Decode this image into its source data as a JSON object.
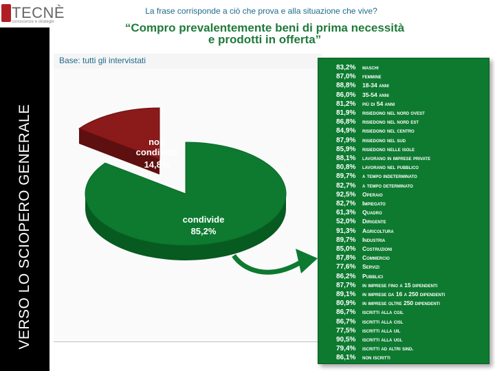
{
  "header": {
    "question": "La frase corrisponde a ciò che prova e alla situazione che vive?",
    "title_line1": "“Compro prevalentemente beni di prima necessità",
    "title_line2": "e prodotti in offerta”",
    "base": "Base: tutti gli intervistati"
  },
  "logo": {
    "name": "TECNÈ",
    "tagline": "conoscenze e strategie"
  },
  "sidebar": {
    "label": "VERSO LO SCIOPERO GENERALE"
  },
  "colors": {
    "green": "#0d7a30",
    "dark_green": "#075a20",
    "red": "#8b1a1a",
    "dark_red": "#5e0f0f"
  },
  "chart_data": {
    "type": "pie",
    "slices": [
      {
        "label": "condivide",
        "value": 85.2,
        "value_label": "85,2%"
      },
      {
        "label": "non condivide",
        "value": 14.8,
        "value_label": "14,8%"
      }
    ]
  },
  "breakdown": [
    {
      "value": "83,2%",
      "label": "maschi"
    },
    {
      "value": "87,0%",
      "label": "femmine"
    },
    {
      "value": "88,8%",
      "label": "18-34 anni"
    },
    {
      "value": "86,0%",
      "label": "35-54 anni"
    },
    {
      "value": "81,2%",
      "label": "più di 54 anni"
    },
    {
      "value": "81,9%",
      "label": "risiedono nel nord ovest"
    },
    {
      "value": "86,8%",
      "label": "risiedono nel nord est"
    },
    {
      "value": "84,9%",
      "label": "risiedono nel centro"
    },
    {
      "value": "87,9%",
      "label": "risiedono nel sud"
    },
    {
      "value": "85,9%",
      "label": "risiedono nelle isole"
    },
    {
      "value": "88,1%",
      "label": "lavorano in imprese private"
    },
    {
      "value": "80,8%",
      "label": "lavorano nel pubblico"
    },
    {
      "value": "89,7%",
      "label": "a tempo indeterminato"
    },
    {
      "value": "82,7%",
      "label": "a tempo determinato"
    },
    {
      "value": "92,5%",
      "label": "Operaio"
    },
    {
      "value": "82,7%",
      "label": "Impiegato"
    },
    {
      "value": "61,3%",
      "label": "Quadro"
    },
    {
      "value": "52,0%",
      "label": "Dirigente"
    },
    {
      "value": "91,3%",
      "label": "Agricoltura"
    },
    {
      "value": "89,7%",
      "label": "Industria"
    },
    {
      "value": "85,0%",
      "label": "Costruzioni"
    },
    {
      "value": "87,8%",
      "label": "Commercio"
    },
    {
      "value": "77,6%",
      "label": "Servizi"
    },
    {
      "value": "86,2%",
      "label": "Pubblici"
    },
    {
      "value": "87,7%",
      "label": "in imprese fino a 15 dipendenti"
    },
    {
      "value": "89,1%",
      "label": "in imprese da 16 a 250 dipendenti"
    },
    {
      "value": "80,9%",
      "label": "in imprese oltre 250 dipendenti"
    },
    {
      "value": "86,7%",
      "label": "iscritti alla cgil"
    },
    {
      "value": "86,7%",
      "label": "iscritti alla cisl"
    },
    {
      "value": "77,5%",
      "label": "iscritti alla uil"
    },
    {
      "value": "90,5%",
      "label": "iscritti alla ugl"
    },
    {
      "value": "79,4%",
      "label": "iscritti ad altri sind."
    },
    {
      "value": "86,1%",
      "label": "non iscritti"
    }
  ]
}
